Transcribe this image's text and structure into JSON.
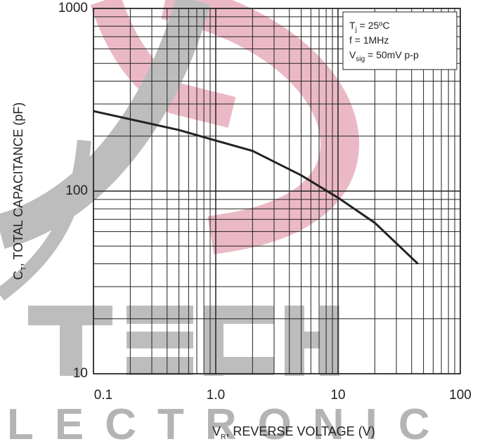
{
  "chart_data": {
    "type": "line",
    "x_label": [
      "V",
      "R",
      ", REVERSE VOLTAGE (V)"
    ],
    "y_label": [
      "C",
      "T",
      ", TOTAL CAPACITANCE (pF)"
    ],
    "annotations": [
      [
        "T",
        "j",
        " = 25ºC"
      ],
      [
        "f = 1MHz"
      ],
      [
        "V",
        "sig",
        " = 50mV p-p"
      ]
    ],
    "watermark": "LECTRONIC",
    "x_scale": "log",
    "y_scale": "log",
    "grid": true,
    "minor_grid": true,
    "xlim": [
      0.1,
      100
    ],
    "ylim": [
      10,
      1000
    ],
    "xticks": [
      0.1,
      {
        "value": 1,
        "label": "1.0"
      },
      10,
      100
    ],
    "yticks": [
      10,
      100,
      1000
    ],
    "series": [
      {
        "name": "CT",
        "color": "#222222",
        "x": [
          0.1,
          0.5,
          1,
          2,
          5,
          10,
          20,
          45
        ],
        "values": [
          274,
          216,
          189,
          166,
          122,
          92,
          67,
          40
        ]
      }
    ]
  }
}
